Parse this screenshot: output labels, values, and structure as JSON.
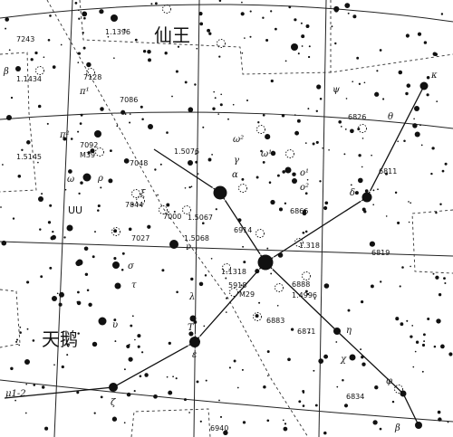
{
  "constellations": {
    "cepheus": "仙王",
    "cygnus": "天鹅"
  },
  "variable_star": "UU",
  "catalog_labels": [
    "7243",
    "1.1434",
    "7128",
    "7086",
    "6826",
    "1.5145",
    "7092",
    "M39",
    "7048",
    "1.5076",
    "6811",
    "7044",
    "7000",
    "1.5067",
    "6866",
    "7027",
    "1.5068",
    "6914",
    "1.318",
    "6819",
    "1.1318",
    "6888",
    "5918",
    "1.4996",
    "M29",
    "6883",
    "6871",
    "6834",
    "6940",
    "1.1396"
  ],
  "star_greek": [
    "β",
    "π¹",
    "π²",
    "ρ",
    "ω",
    "ξ",
    "ν",
    "σ",
    "τ",
    "λ",
    "T",
    "ε",
    "υ",
    "ζ",
    "μ1-2",
    "ω²",
    "ω¹",
    "o¹",
    "o²",
    "δ",
    "ψ",
    "κ",
    "θ",
    "η",
    "χ",
    "φ",
    "β",
    "γ",
    "α"
  ],
  "dsoIcon": "open-cluster-icon",
  "colors": {
    "ink": "#111111",
    "paper": "#ffffff"
  }
}
